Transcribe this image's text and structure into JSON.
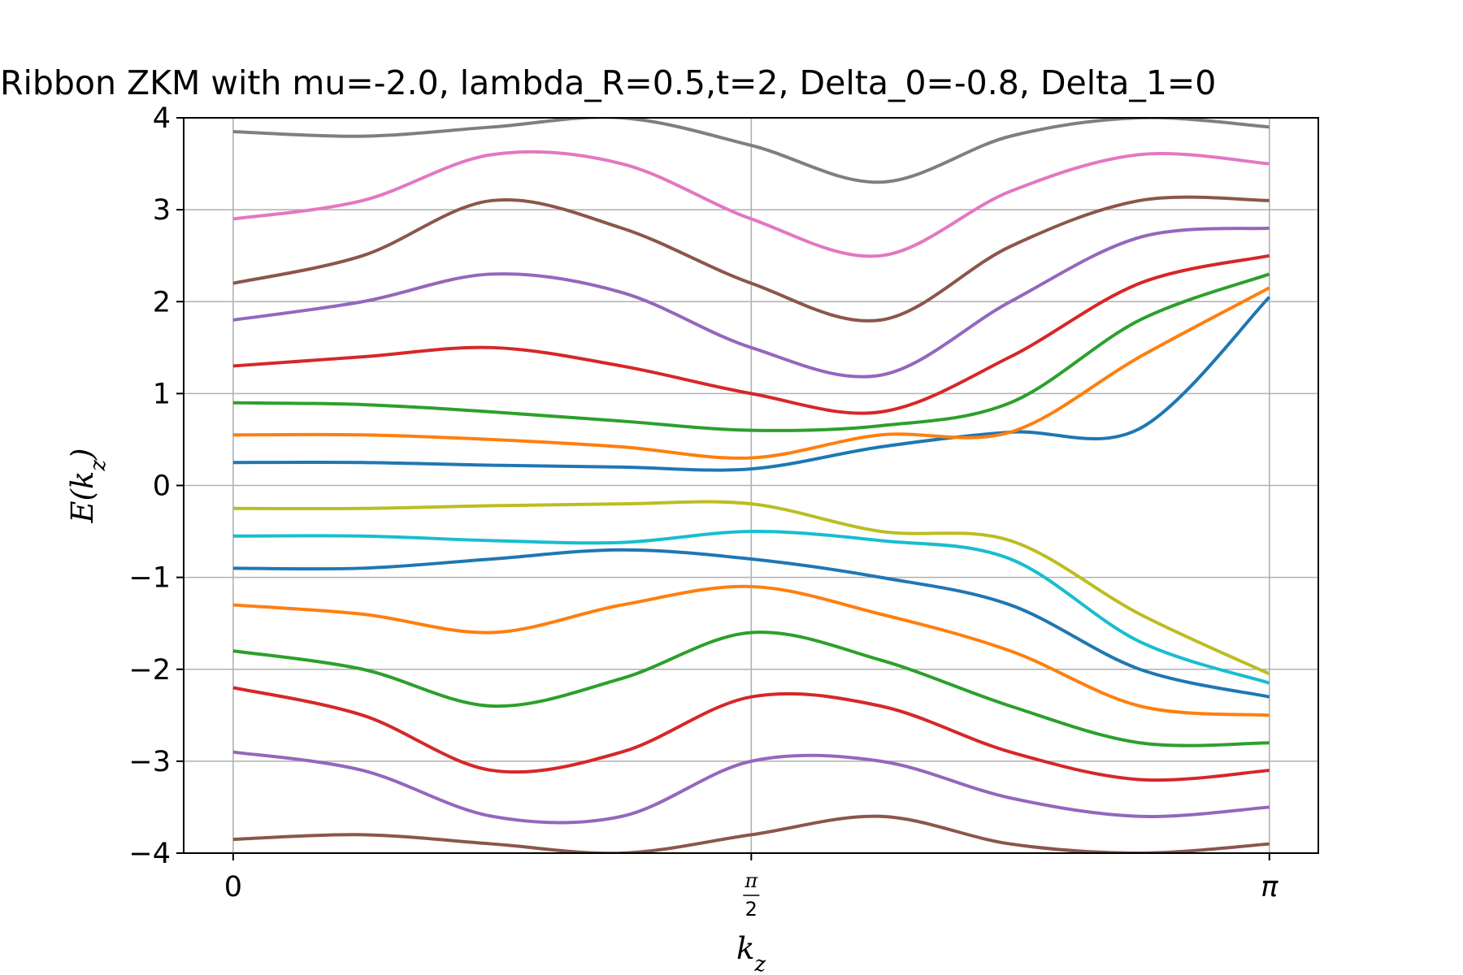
{
  "chart_data": {
    "type": "line",
    "title": "Ribbon ZKM with mu=-2.0, lambda_R=0.5,t=2, Delta_0=-0.8, Delta_1=0",
    "xlabel": "k_z",
    "ylabel": "E(k_z)",
    "xlim": [
      -0.15,
      3.29
    ],
    "ylim": [
      -4,
      4
    ],
    "x_ticks": [
      {
        "value": 0,
        "label": "0"
      },
      {
        "value": 1.5708,
        "label": "π/2"
      },
      {
        "value": 3.1416,
        "label": "π"
      }
    ],
    "y_ticks": [
      {
        "value": 4,
        "label": "4"
      },
      {
        "value": 3,
        "label": "3"
      },
      {
        "value": 2,
        "label": "2"
      },
      {
        "value": 1,
        "label": "1"
      },
      {
        "value": 0,
        "label": "0"
      },
      {
        "value": -1,
        "label": "−1"
      },
      {
        "value": -2,
        "label": "−2"
      },
      {
        "value": -3,
        "label": "−3"
      },
      {
        "value": -4,
        "label": "−4"
      }
    ],
    "grid": true,
    "legend": "none",
    "series_colors": [
      "#1f77b4",
      "#ff7f0e",
      "#2ca02c",
      "#d62728",
      "#9467bd",
      "#8c564b",
      "#e377c2",
      "#7f7f7f",
      "#bcbd22",
      "#17becf"
    ],
    "series": [
      {
        "x": [
          0,
          0.3927,
          0.7854,
          1.1781,
          1.5708,
          1.9635,
          2.3562,
          2.7489,
          3.1416
        ],
        "values": [
          0.25,
          0.25,
          0.22,
          0.2,
          0.18,
          0.42,
          0.58,
          0.62,
          2.05
        ]
      },
      {
        "x": [
          0,
          0.3927,
          0.7854,
          1.1781,
          1.5708,
          1.9635,
          2.3562,
          2.7489,
          3.1416
        ],
        "values": [
          0.55,
          0.55,
          0.5,
          0.42,
          0.3,
          0.55,
          0.58,
          1.4,
          2.15
        ]
      },
      {
        "x": [
          0,
          0.3927,
          0.7854,
          1.1781,
          1.5708,
          1.9635,
          2.3562,
          2.7489,
          3.1416
        ],
        "values": [
          0.9,
          0.88,
          0.8,
          0.7,
          0.6,
          0.65,
          0.9,
          1.8,
          2.3
        ]
      },
      {
        "x": [
          0,
          0.3927,
          0.7854,
          1.1781,
          1.5708,
          1.9635,
          2.3562,
          2.7489,
          3.1416
        ],
        "values": [
          1.3,
          1.4,
          1.5,
          1.3,
          1.0,
          0.8,
          1.4,
          2.2,
          2.5
        ]
      },
      {
        "x": [
          0,
          0.3927,
          0.7854,
          1.1781,
          1.5708,
          1.9635,
          2.3562,
          2.7489,
          3.1416
        ],
        "values": [
          1.8,
          2.0,
          2.3,
          2.1,
          1.5,
          1.2,
          2.0,
          2.7,
          2.8
        ]
      },
      {
        "x": [
          0,
          0.3927,
          0.7854,
          1.1781,
          1.5708,
          1.9635,
          2.3562,
          2.7489,
          3.1416
        ],
        "values": [
          2.2,
          2.5,
          3.1,
          2.8,
          2.2,
          1.8,
          2.6,
          3.1,
          3.1
        ]
      },
      {
        "x": [
          0,
          0.3927,
          0.7854,
          1.1781,
          1.5708,
          1.9635,
          2.3562,
          2.7489,
          3.1416
        ],
        "values": [
          2.9,
          3.1,
          3.6,
          3.5,
          2.9,
          2.5,
          3.2,
          3.6,
          3.5
        ]
      },
      {
        "x": [
          0,
          0.3927,
          0.7854,
          1.1781,
          1.5708,
          1.9635,
          2.3562,
          2.7489,
          3.1416
        ],
        "values": [
          3.85,
          3.8,
          3.9,
          4.0,
          3.7,
          3.3,
          3.8,
          4.0,
          3.9
        ]
      },
      {
        "x": [
          0,
          0.3927,
          0.7854,
          1.1781,
          1.5708,
          1.9635,
          2.3562,
          2.7489,
          3.1416
        ],
        "values": [
          -0.25,
          -0.25,
          -0.22,
          -0.2,
          -0.2,
          -0.5,
          -0.6,
          -1.4,
          -2.05
        ]
      },
      {
        "x": [
          0,
          0.3927,
          0.7854,
          1.1781,
          1.5708,
          1.9635,
          2.3562,
          2.7489,
          3.1416
        ],
        "values": [
          -0.55,
          -0.55,
          -0.6,
          -0.62,
          -0.5,
          -0.6,
          -0.8,
          -1.7,
          -2.15
        ]
      },
      {
        "x": [
          0,
          0.3927,
          0.7854,
          1.1781,
          1.5708,
          1.9635,
          2.3562,
          2.7489,
          3.1416
        ],
        "values": [
          -0.9,
          -0.9,
          -0.8,
          -0.7,
          -0.8,
          -1.0,
          -1.3,
          -2.0,
          -2.3
        ]
      },
      {
        "x": [
          0,
          0.3927,
          0.7854,
          1.1781,
          1.5708,
          1.9635,
          2.3562,
          2.7489,
          3.1416
        ],
        "values": [
          -1.3,
          -1.4,
          -1.6,
          -1.3,
          -1.1,
          -1.4,
          -1.8,
          -2.4,
          -2.5
        ]
      },
      {
        "x": [
          0,
          0.3927,
          0.7854,
          1.1781,
          1.5708,
          1.9635,
          2.3562,
          2.7489,
          3.1416
        ],
        "values": [
          -1.8,
          -2.0,
          -2.4,
          -2.1,
          -1.6,
          -1.9,
          -2.4,
          -2.8,
          -2.8
        ]
      },
      {
        "x": [
          0,
          0.3927,
          0.7854,
          1.1781,
          1.5708,
          1.9635,
          2.3562,
          2.7489,
          3.1416
        ],
        "values": [
          -2.2,
          -2.5,
          -3.1,
          -2.9,
          -2.3,
          -2.4,
          -2.9,
          -3.2,
          -3.1
        ]
      },
      {
        "x": [
          0,
          0.3927,
          0.7854,
          1.1781,
          1.5708,
          1.9635,
          2.3562,
          2.7489,
          3.1416
        ],
        "values": [
          -2.9,
          -3.1,
          -3.6,
          -3.6,
          -3.0,
          -3.0,
          -3.4,
          -3.6,
          -3.5
        ]
      },
      {
        "x": [
          0,
          0.3927,
          0.7854,
          1.1781,
          1.5708,
          1.9635,
          2.3562,
          2.7489,
          3.1416
        ],
        "values": [
          -3.85,
          -3.8,
          -3.9,
          -4.0,
          -3.8,
          -3.6,
          -3.9,
          -4.0,
          -3.9
        ]
      }
    ]
  }
}
